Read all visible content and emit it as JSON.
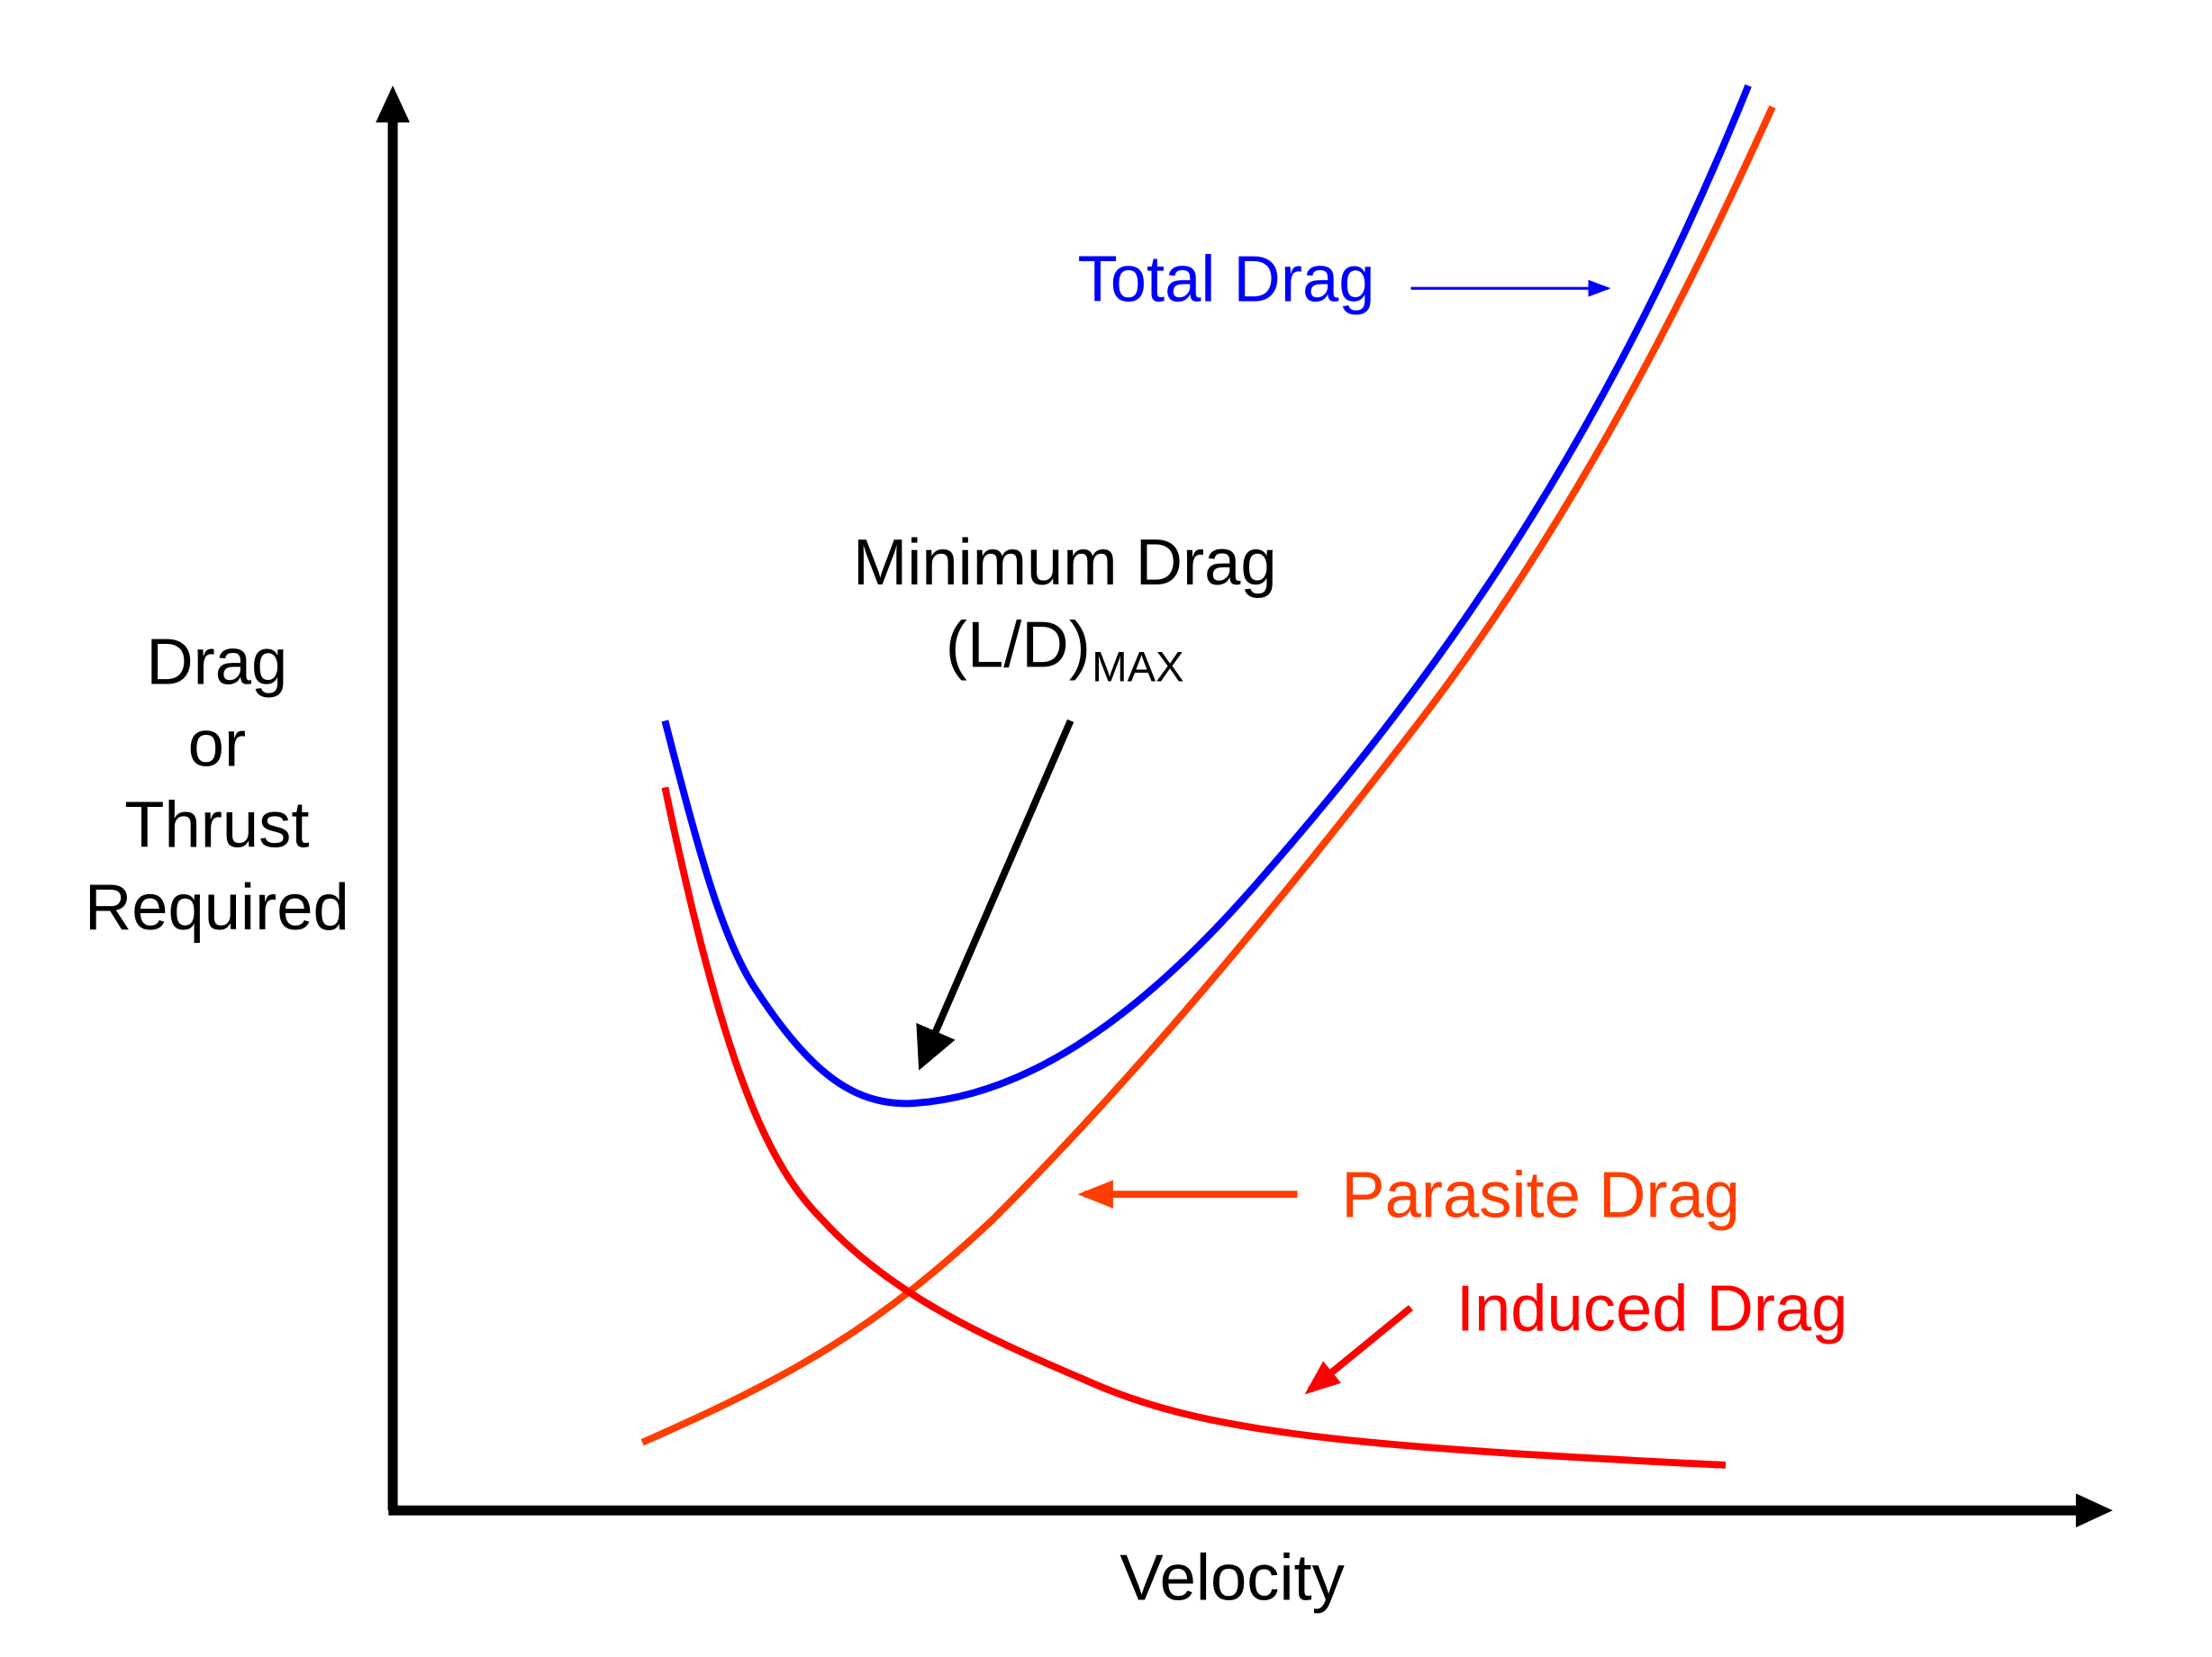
{
  "chart_data": {
    "type": "line",
    "title": "",
    "xlabel": "Velocity",
    "ylabel_lines": [
      "Drag",
      "or",
      "Thrust",
      "Required"
    ],
    "grid": false,
    "ticks": false,
    "series": [
      {
        "name": "Total Drag",
        "color": "#0000FF",
        "shape": "U-shaped, sum of parasite and induced drag"
      },
      {
        "name": "Parasite Drag",
        "color": "#FF3D00",
        "shape": "increases with velocity squared"
      },
      {
        "name": "Induced Drag",
        "color": "#FF0000",
        "shape": "decreases with velocity squared"
      }
    ],
    "annotations": {
      "minimum_line1": "Minimum Drag",
      "minimum_line2": "(L/D)",
      "minimum_sub": "MAX",
      "minimum_color": "#000000"
    }
  }
}
